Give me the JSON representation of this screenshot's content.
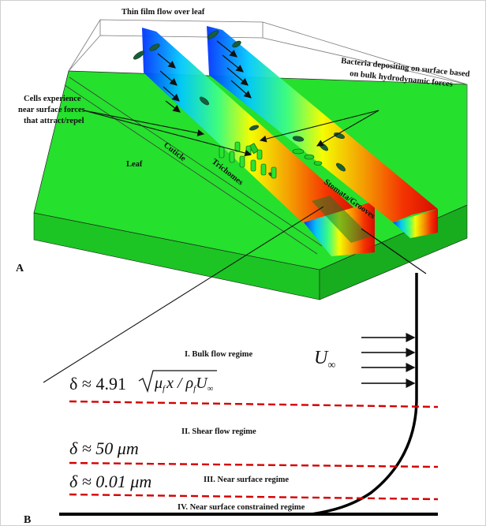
{
  "panelA": {
    "panel_label": "A",
    "title": "Thin film flow over leaf",
    "leaf": "Leaf",
    "cuticle": "Cuticle",
    "trichomes": "Trichomes",
    "stomata": "Stomata/Grooves",
    "cells_line1": "Cells experience",
    "cells_line2": "near surface forces",
    "cells_line3": "that attract/repel",
    "bacteria_line1": "Bacteria depositing on surface based",
    "bacteria_line2": "on bulk hydrodynamic forces",
    "colors": {
      "leaf": "#22e02a",
      "leaf_dark": "#1ab320",
      "leaf_side": "#1fc826"
    }
  },
  "panelB": {
    "panel_label": "B",
    "freestream_symbol": "U",
    "freestream_subscript": "∞",
    "eq_bulk": "δ ≈ 4.91√(μ_f x/ρ_f U_∞)",
    "eq_bulk_lhs": "δ ≈ 4.91",
    "eq_bulk_rad": "μ",
    "eq_bulk_sub_f": "f",
    "eq_bulk_x": "x / ρ",
    "eq_bulk_U": "U",
    "eq_bulk_inf": "∞",
    "eq_shear": "δ ≈ 50  μm",
    "eq_near": "δ ≈ 0.01  μm",
    "regime1": "I. Bulk flow regime",
    "regime2": "II. Shear flow regime",
    "regime3": "III. Near surface regime",
    "regime4": "IV. Near surface constrained regime",
    "dash_color": "#d40000"
  }
}
